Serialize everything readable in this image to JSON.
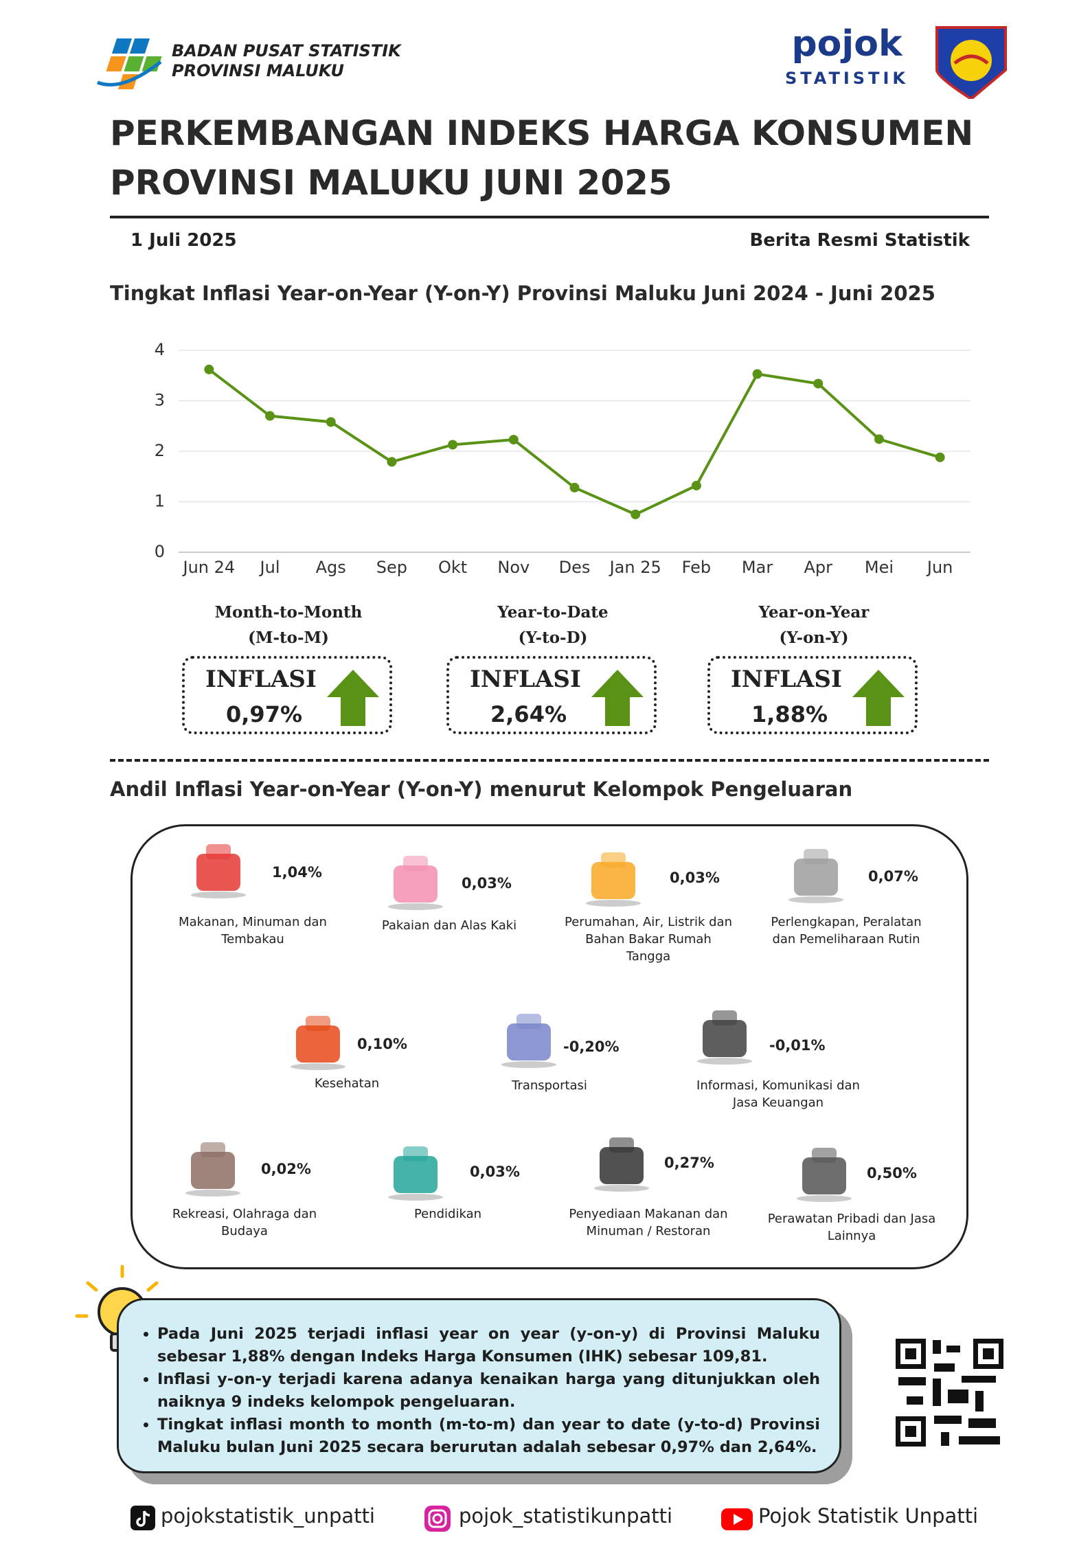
{
  "header": {
    "org_line1": "BADAN PUSAT STATISTIK",
    "org_line2": "PROVINSI MALUKU",
    "brand": "pojok",
    "brand_sub": "STATISTIK",
    "title_line1": "PERKEMBANGAN INDEKS HARGA KONSUMEN",
    "title_line2": "PROVINSI MALUKU JUNI 2025",
    "date": "1 Juli 2025",
    "series": "Berita Resmi Statistik"
  },
  "chart_data": {
    "type": "line",
    "title": "Tingkat Inflasi Year-on-Year (Y-on-Y) Provinsi Maluku Juni 2024 - Juni 2025",
    "categories": [
      "Jun 24",
      "Jul",
      "Ags",
      "Sep",
      "Okt",
      "Nov",
      "Des",
      "Jan 25",
      "Feb",
      "Mar",
      "Apr",
      "Mei",
      "Jun"
    ],
    "values": [
      3.62,
      2.7,
      2.58,
      1.79,
      2.13,
      2.23,
      1.28,
      0.75,
      1.32,
      3.53,
      3.34,
      2.24,
      1.88
    ],
    "color": "#5a9216",
    "ylim": [
      0,
      4
    ],
    "yticks": [
      0,
      1,
      2,
      3,
      4
    ],
    "grid": true
  },
  "indicators": [
    {
      "label1": "Month-to-Month",
      "label2": "(M-to-M)",
      "status": "INFLASI",
      "value": "0,97%"
    },
    {
      "label1": "Year-to-Date",
      "label2": "(Y-to-D)",
      "status": "INFLASI",
      "value": "2,64%"
    },
    {
      "label1": "Year-on-Year",
      "label2": "(Y-on-Y)",
      "status": "INFLASI",
      "value": "1,88%"
    }
  ],
  "contributions": {
    "title": "Andil Inflasi Year-on-Year (Y-on-Y) menurut Kelompok Pengeluaran",
    "items": [
      {
        "value": "1,04%",
        "label": "Makanan, Minuman dan Tembakau"
      },
      {
        "value": "0,03%",
        "label": "Pakaian dan Alas Kaki"
      },
      {
        "value": "0,03%",
        "label": "Perumahan, Air, Listrik dan Bahan Bakar Rumah Tangga"
      },
      {
        "value": "0,07%",
        "label": "Perlengkapan, Peralatan dan Pemeliharaan Rutin"
      },
      {
        "value": "0,10%",
        "label": "Kesehatan"
      },
      {
        "value": "-0,20%",
        "label": "Transportasi"
      },
      {
        "value": "-0,01%",
        "label": "Informasi, Komunikasi dan Jasa Keuangan"
      },
      {
        "value": "0,02%",
        "label": "Rekreasi, Olahraga dan Budaya"
      },
      {
        "value": "0,03%",
        "label": "Pendidikan"
      },
      {
        "value": "0,27%",
        "label": "Penyediaan Makanan dan Minuman / Restoran"
      },
      {
        "value": "0,50%",
        "label": "Perawatan Pribadi dan Jasa Lainnya"
      }
    ]
  },
  "notes": [
    "Pada Juni 2025 terjadi inflasi year on year (y-on-y) di Provinsi Maluku sebesar 1,88% dengan Indeks Harga Konsumen (IHK) sebesar 109,81.",
    "Inflasi y-on-y terjadi karena adanya kenaikan harga yang ditunjukkan oleh naiknya 9 indeks kelompok pengeluaran.",
    "Tingkat inflasi month to month (m-to-m) dan year to date (y-to-d) Provinsi Maluku bulan Juni 2025 secara berurutan adalah sebesar 0,97% dan 2,64%."
  ],
  "footer": [
    "pojokstatistik_unpatti",
    "pojok_statistikunpatti",
    "Pojok Statistik Unpatti"
  ]
}
